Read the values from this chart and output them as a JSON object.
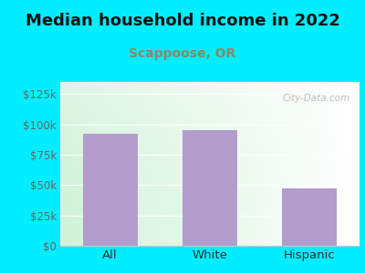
{
  "title": "Median household income in 2022",
  "subtitle": "Scappoose, OR",
  "subtitle_color": "#888866",
  "categories": [
    "All",
    "White",
    "Hispanic"
  ],
  "values": [
    92000,
    95000,
    47000
  ],
  "bar_color": "#b39dca",
  "background_color": "#00eeff",
  "yticks": [
    0,
    25000,
    50000,
    75000,
    100000,
    125000
  ],
  "ytick_labels": [
    "$0",
    "$25k",
    "$50k",
    "$75k",
    "$100k",
    "$125k"
  ],
  "ylim": [
    0,
    135000
  ],
  "watermark": "City-Data.com",
  "title_fontsize": 13,
  "subtitle_fontsize": 10,
  "tick_fontsize": 8.5,
  "xlabel_fontsize": 9.5
}
